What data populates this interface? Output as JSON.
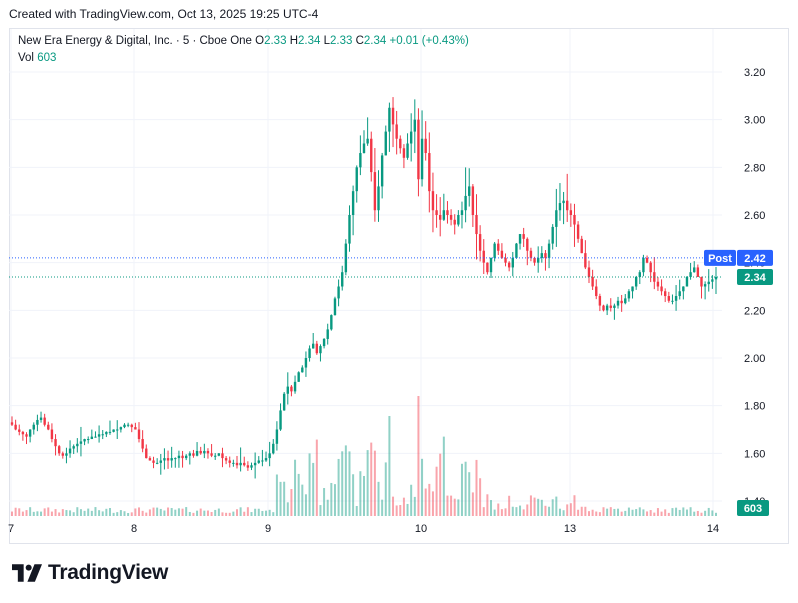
{
  "header": {
    "created_text": "Created with TradingView.com, Oct 13, 2025 19:25 UTC-4"
  },
  "legend": {
    "symbol": "New Era Energy & Digital, Inc. · 5 · Cboe One",
    "o_label": "O",
    "o_value": "2.33",
    "h_label": "H",
    "h_value": "2.34",
    "l_label": "L",
    "l_value": "2.33",
    "c_label": "C",
    "c_value": "2.34",
    "change": "+0.01 (+0.43%)",
    "vol_label": "Vol",
    "vol_value": "603"
  },
  "footer": {
    "brand": "TradingView"
  },
  "colors": {
    "up": "#089981",
    "down": "#f23645",
    "post": "#2962ff",
    "grid": "#f0f3fa"
  },
  "chart_data": {
    "type": "candlestick",
    "interval": "5",
    "y_ticks": [
      "3.20",
      "3.00",
      "2.80",
      "2.60",
      "2.40",
      "2.20",
      "2.00",
      "1.80",
      "1.60",
      "1.40"
    ],
    "x_ticks": [
      "7",
      "8",
      "9",
      "10",
      "13",
      "14"
    ],
    "ylim": [
      1.4,
      3.2
    ],
    "price_lines": [
      {
        "label": "Post",
        "value": "2.42",
        "color": "#2962ff"
      },
      {
        "label": "",
        "value": "2.34",
        "color": "#089981"
      }
    ],
    "volume_badge": "603",
    "series": [
      {
        "name": "price",
        "close": [
          1.72,
          1.7,
          1.69,
          1.68,
          1.67,
          1.7,
          1.72,
          1.74,
          1.75,
          1.72,
          1.7,
          1.66,
          1.63,
          1.6,
          1.59,
          1.6,
          1.62,
          1.63,
          1.64,
          1.65,
          1.66,
          1.66,
          1.67,
          1.67,
          1.68,
          1.68,
          1.69,
          1.69,
          1.7,
          1.7,
          1.71,
          1.72,
          1.72,
          1.71,
          1.7,
          1.66,
          1.62,
          1.58,
          1.57,
          1.56,
          1.56,
          1.57,
          1.58,
          1.57,
          1.58,
          1.58,
          1.59,
          1.58,
          1.59,
          1.6,
          1.59,
          1.61,
          1.6,
          1.61,
          1.6,
          1.59,
          1.59,
          1.6,
          1.58,
          1.57,
          1.56,
          1.56,
          1.55,
          1.56,
          1.55,
          1.54,
          1.55,
          1.56,
          1.57,
          1.57,
          1.58,
          1.6,
          1.64,
          1.7,
          1.78,
          1.85,
          1.88,
          1.86,
          1.9,
          1.94,
          1.96,
          2.0,
          2.04,
          2.06,
          2.02,
          2.05,
          2.08,
          2.12,
          2.18,
          2.25,
          2.3,
          2.36,
          2.48,
          2.6,
          2.7,
          2.8,
          2.86,
          2.9,
          2.92,
          2.78,
          2.62,
          2.72,
          2.85,
          2.95,
          3.05,
          2.98,
          2.92,
          2.88,
          2.84,
          2.9,
          2.95,
          3.0,
          2.75,
          2.92,
          2.86,
          2.7,
          2.62,
          2.6,
          2.58,
          2.62,
          2.6,
          2.58,
          2.56,
          2.6,
          2.62,
          2.68,
          2.72,
          2.6,
          2.52,
          2.45,
          2.4,
          2.36,
          2.42,
          2.48,
          2.45,
          2.42,
          2.4,
          2.38,
          2.42,
          2.48,
          2.52,
          2.5,
          2.45,
          2.42,
          2.4,
          2.42,
          2.44,
          2.42,
          2.48,
          2.55,
          2.62,
          2.65,
          2.66,
          2.62,
          2.6,
          2.56,
          2.5,
          2.44,
          2.38,
          2.34,
          2.3,
          2.26,
          2.22,
          2.2,
          2.22,
          2.21,
          2.22,
          2.24,
          2.23,
          2.25,
          2.28,
          2.3,
          2.34,
          2.36,
          2.42,
          2.4,
          2.36,
          2.32,
          2.3,
          2.28,
          2.26,
          2.24,
          2.24,
          2.26,
          2.28,
          2.3,
          2.34,
          2.36,
          2.38,
          2.34,
          2.3,
          2.31,
          2.32,
          2.33,
          2.34
        ]
      }
    ]
  }
}
